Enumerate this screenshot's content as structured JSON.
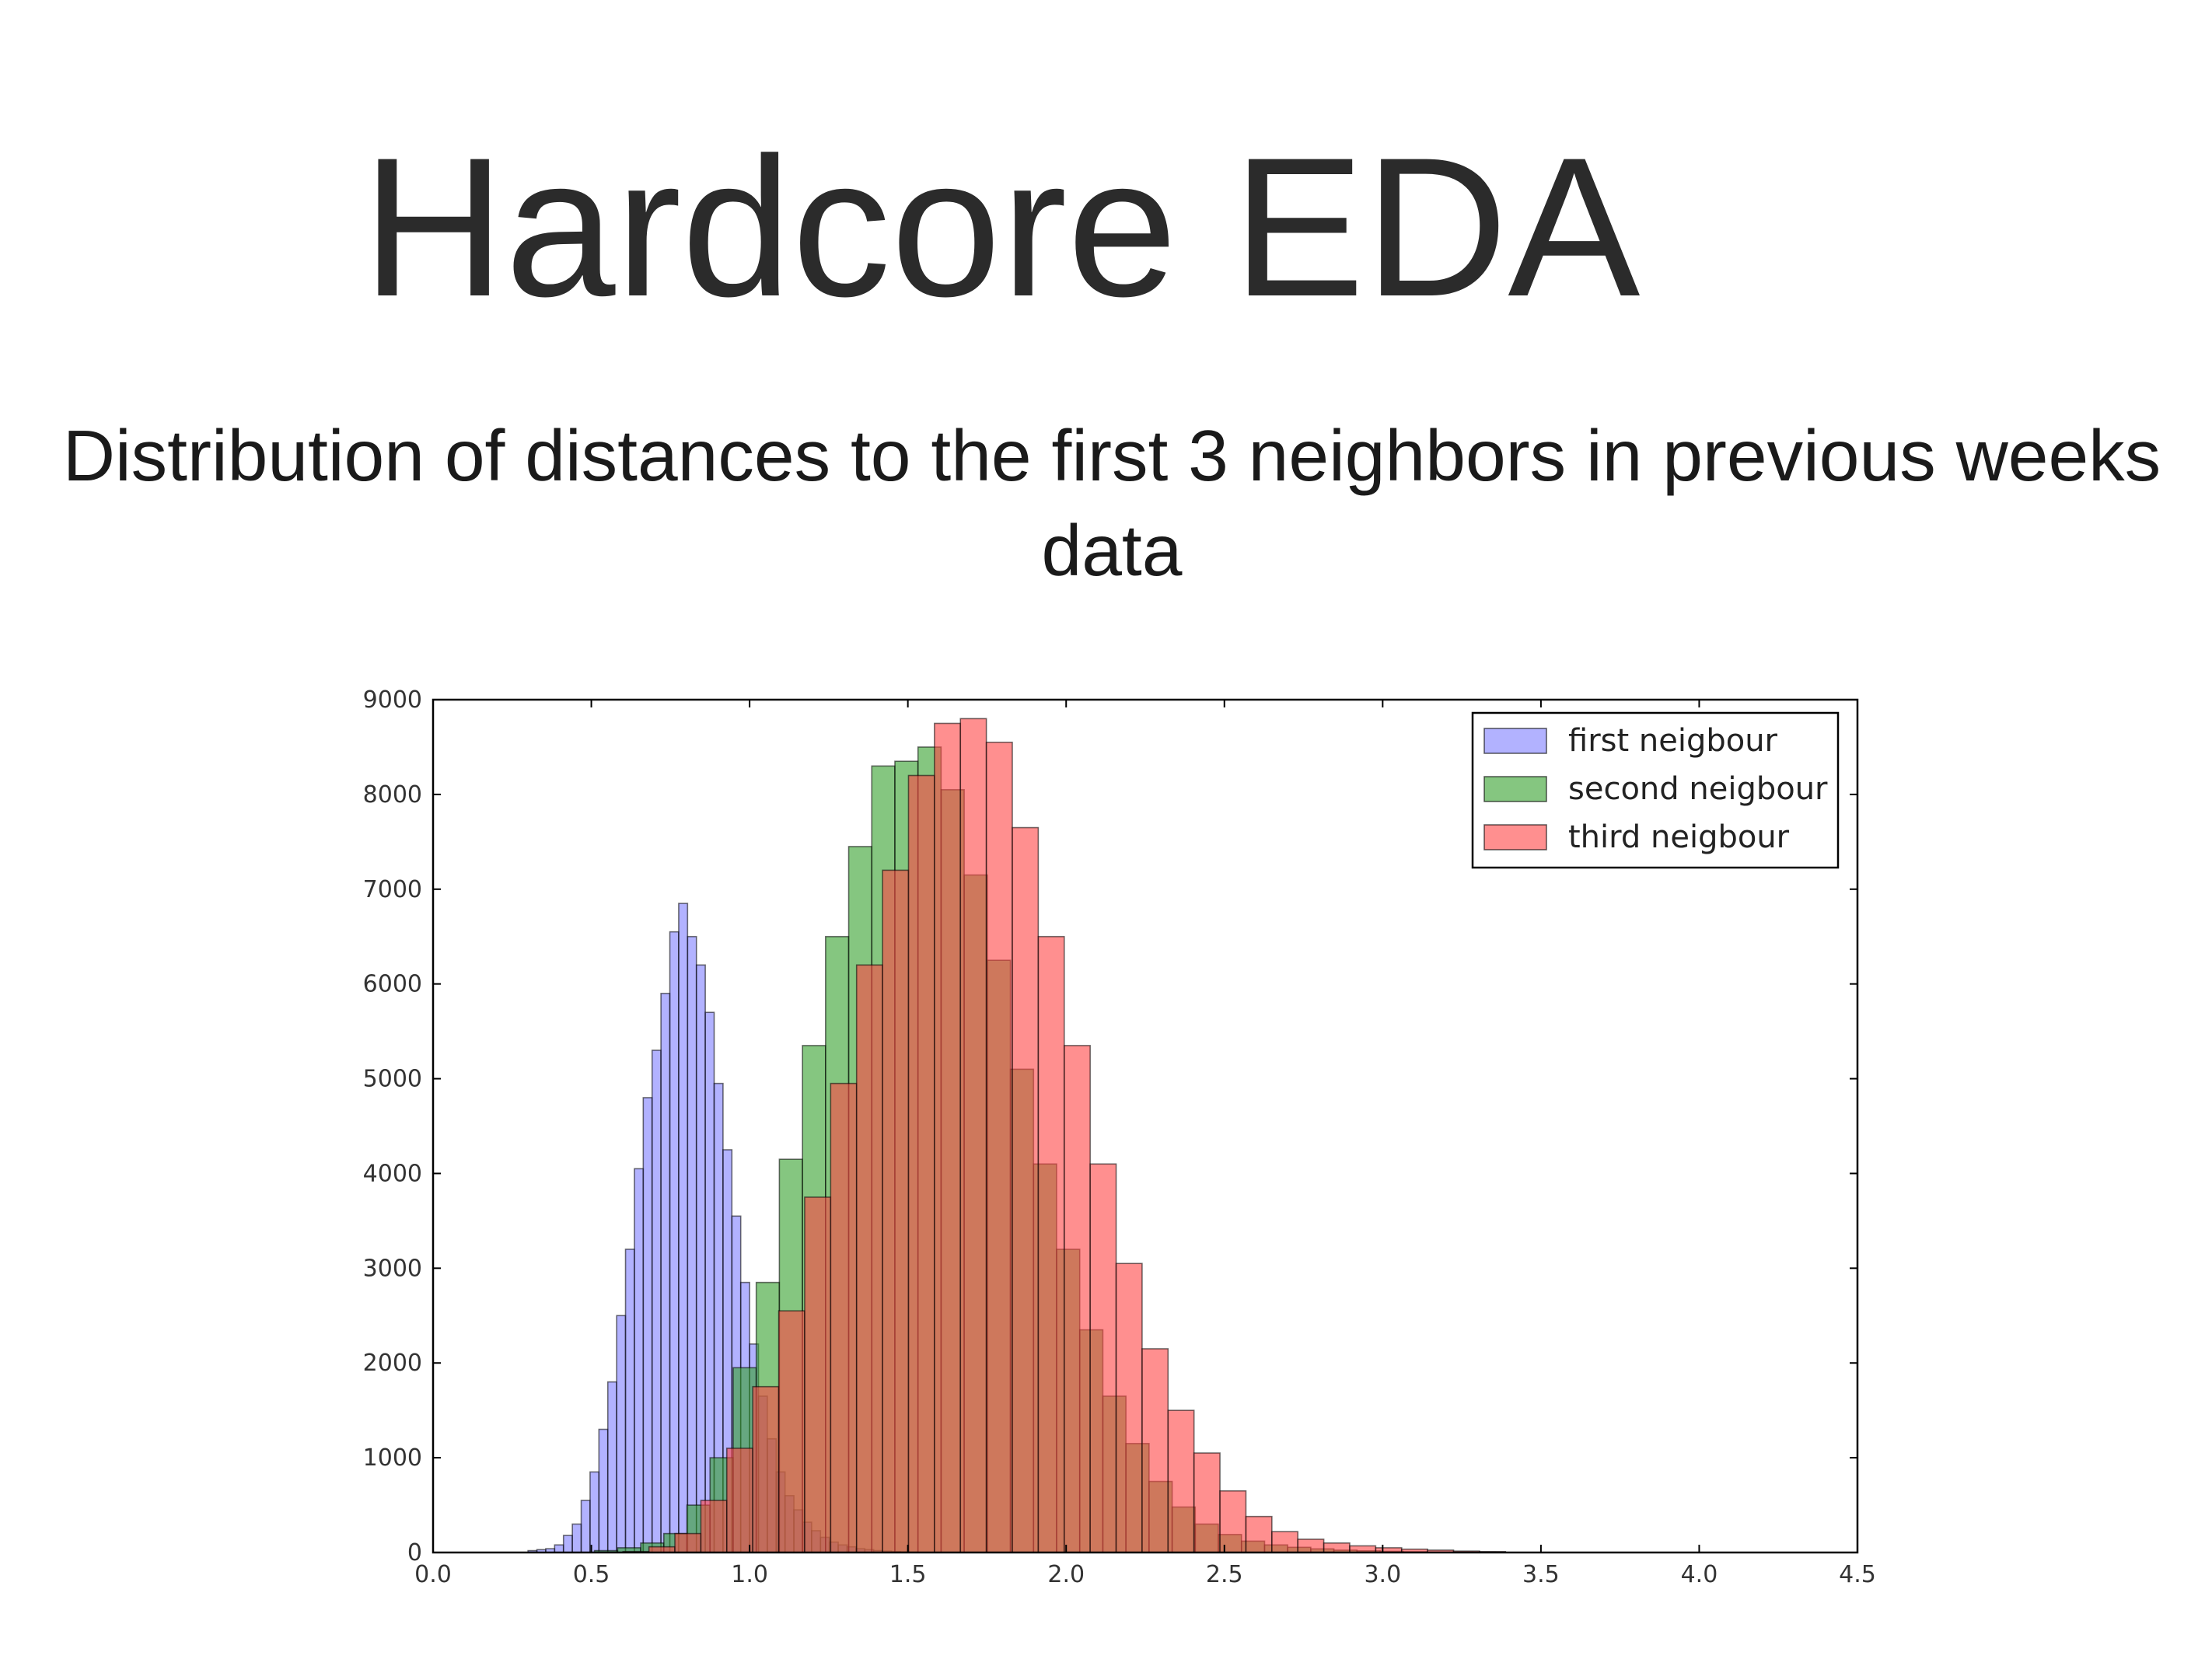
{
  "slide": {
    "title": "Hardcore EDA",
    "subtitle": "Distribution of distances to the first 3 neighbors in previous weeks data"
  },
  "chart_data": {
    "type": "bar",
    "title": "",
    "xlabel": "",
    "ylabel": "",
    "xlim": [
      0.0,
      4.5
    ],
    "ylim": [
      0,
      9000
    ],
    "xticks": [
      "0.0",
      "0.5",
      "1.0",
      "1.5",
      "2.0",
      "2.5",
      "3.0",
      "3.5",
      "4.0",
      "4.5"
    ],
    "yticks": [
      "0",
      "1000",
      "2000",
      "3000",
      "4000",
      "5000",
      "6000",
      "7000",
      "8000",
      "9000"
    ],
    "grid": false,
    "legend_position": "top-right",
    "series": [
      {
        "name": "first neigbour",
        "color": "#6666ff",
        "opacity": 0.5,
        "bin_width": 0.028,
        "bins_start": [
          0.3,
          0.328,
          0.356,
          0.384,
          0.412,
          0.44,
          0.468,
          0.496,
          0.524,
          0.552,
          0.58,
          0.608,
          0.636,
          0.664,
          0.692,
          0.72,
          0.748,
          0.776,
          0.804,
          0.832,
          0.86,
          0.888,
          0.916,
          0.944,
          0.972,
          1.0,
          1.028,
          1.056,
          1.084,
          1.112,
          1.14,
          1.168,
          1.196,
          1.224,
          1.252,
          1.28,
          1.308,
          1.336,
          1.364,
          1.392,
          1.42,
          1.448,
          1.476,
          1.504
        ],
        "values": [
          20,
          30,
          40,
          80,
          180,
          300,
          550,
          850,
          1300,
          1800,
          2500,
          3200,
          4050,
          4800,
          5300,
          5900,
          6550,
          6850,
          6500,
          6200,
          5700,
          4950,
          4250,
          3550,
          2850,
          2200,
          1650,
          1200,
          850,
          600,
          450,
          320,
          230,
          160,
          110,
          80,
          60,
          40,
          30,
          20,
          15,
          10,
          8,
          5
        ]
      },
      {
        "name": "second neigbour",
        "color": "#33a02c",
        "opacity": 0.6,
        "bin_width": 0.073,
        "bins_start": [
          0.51,
          0.583,
          0.656,
          0.729,
          0.802,
          0.875,
          0.948,
          1.021,
          1.094,
          1.167,
          1.24,
          1.313,
          1.386,
          1.459,
          1.532,
          1.605,
          1.678,
          1.751,
          1.824,
          1.897,
          1.97,
          2.043,
          2.116,
          2.189,
          2.262,
          2.335,
          2.408,
          2.481,
          2.554,
          2.627,
          2.7,
          2.773,
          2.846,
          2.919,
          2.992,
          3.065,
          3.138,
          3.211,
          3.284
        ],
        "values": [
          20,
          50,
          100,
          200,
          500,
          1000,
          1950,
          2850,
          4150,
          5350,
          6500,
          7450,
          8300,
          8350,
          8500,
          8050,
          7150,
          6250,
          5100,
          4100,
          3200,
          2350,
          1650,
          1150,
          750,
          480,
          300,
          190,
          120,
          80,
          55,
          38,
          25,
          18,
          12,
          8,
          5,
          4,
          3
        ]
      },
      {
        "name": "third neigbour",
        "color": "#ff4444",
        "opacity": 0.6,
        "bin_width": 0.082,
        "bins_start": [
          0.6,
          0.682,
          0.764,
          0.846,
          0.928,
          1.01,
          1.092,
          1.174,
          1.256,
          1.338,
          1.42,
          1.502,
          1.584,
          1.666,
          1.748,
          1.83,
          1.912,
          1.994,
          2.076,
          2.158,
          2.24,
          2.322,
          2.404,
          2.486,
          2.568,
          2.65,
          2.732,
          2.814,
          2.896,
          2.978,
          3.06,
          3.142,
          3.224,
          3.306
        ],
        "values": [
          10,
          60,
          200,
          550,
          1100,
          1750,
          2550,
          3750,
          4950,
          6200,
          7200,
          8200,
          8750,
          8800,
          8550,
          7650,
          6500,
          5350,
          4100,
          3050,
          2150,
          1500,
          1050,
          650,
          380,
          220,
          140,
          100,
          70,
          50,
          35,
          25,
          15,
          10
        ]
      }
    ]
  }
}
